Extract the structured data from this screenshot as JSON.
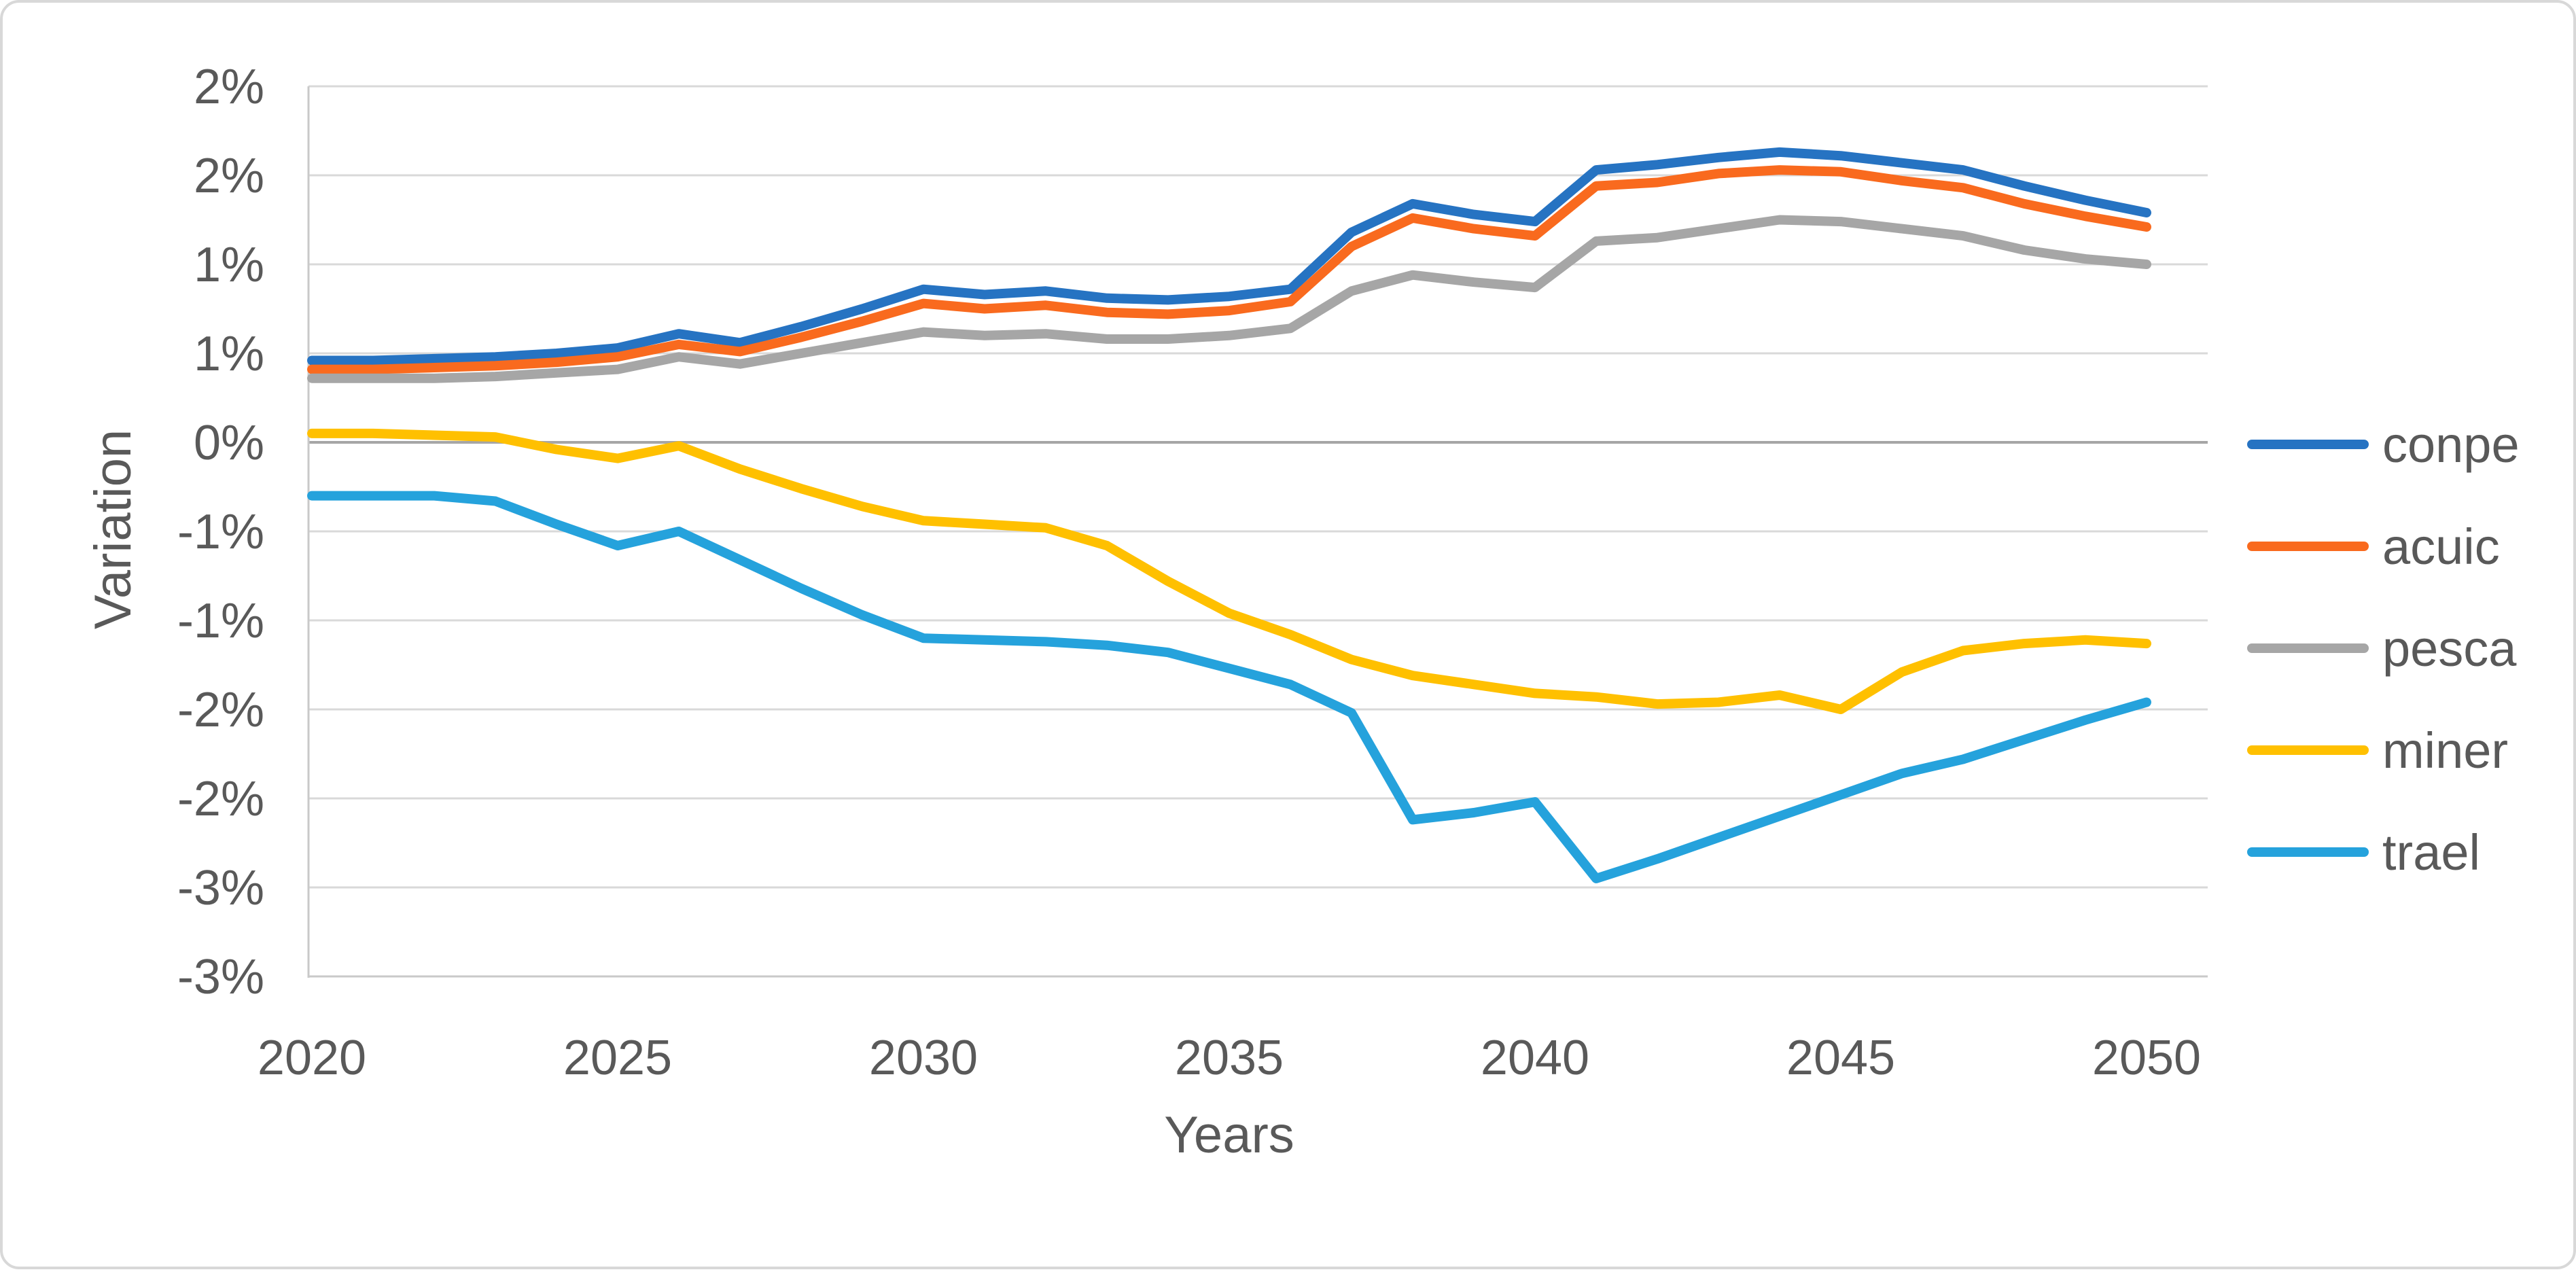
{
  "chart_data": {
    "type": "line",
    "title": "",
    "xlabel": "Years",
    "ylabel": "Variation",
    "grid": true,
    "legend_position": "right",
    "ylim": [
      -3.0,
      2.0
    ],
    "y_tick_step": 0.5,
    "y_ticks": [
      {
        "value": 2.0,
        "label": "2%"
      },
      {
        "value": 1.5,
        "label": "2%"
      },
      {
        "value": 1.0,
        "label": "1%"
      },
      {
        "value": 0.5,
        "label": "1%"
      },
      {
        "value": 0.0,
        "label": "0%"
      },
      {
        "value": -0.5,
        "label": "-1%"
      },
      {
        "value": -1.0,
        "label": "-1%"
      },
      {
        "value": -1.5,
        "label": "-2%"
      },
      {
        "value": -2.0,
        "label": "-2%"
      },
      {
        "value": -2.5,
        "label": "-3%"
      },
      {
        "value": -3.0,
        "label": "-3%"
      }
    ],
    "x": [
      2020,
      2021,
      2022,
      2023,
      2024,
      2025,
      2026,
      2027,
      2028,
      2029,
      2030,
      2031,
      2032,
      2033,
      2034,
      2035,
      2036,
      2037,
      2038,
      2039,
      2040,
      2041,
      2042,
      2043,
      2044,
      2045,
      2046,
      2047,
      2048,
      2049,
      2050
    ],
    "x_tick_labels": [
      "2020",
      "2025",
      "2030",
      "2035",
      "2040",
      "2045",
      "2050"
    ],
    "series": [
      {
        "name": "conpe",
        "color": "#2673c2",
        "values": [
          0.46,
          0.46,
          0.47,
          0.48,
          0.5,
          0.53,
          0.61,
          0.56,
          0.65,
          0.75,
          0.86,
          0.83,
          0.85,
          0.81,
          0.8,
          0.82,
          0.86,
          1.18,
          1.34,
          1.28,
          1.24,
          1.53,
          1.56,
          1.6,
          1.63,
          1.61,
          1.57,
          1.53,
          1.44,
          1.36,
          1.29
        ]
      },
      {
        "name": "acuic",
        "color": "#f96a1e",
        "values": [
          0.41,
          0.41,
          0.42,
          0.43,
          0.45,
          0.48,
          0.55,
          0.51,
          0.59,
          0.68,
          0.78,
          0.75,
          0.77,
          0.73,
          0.72,
          0.74,
          0.79,
          1.1,
          1.26,
          1.2,
          1.16,
          1.44,
          1.46,
          1.51,
          1.53,
          1.52,
          1.47,
          1.43,
          1.34,
          1.27,
          1.21
        ]
      },
      {
        "name": "pesca",
        "color": "#a6a6a6",
        "values": [
          0.36,
          0.36,
          0.36,
          0.37,
          0.39,
          0.41,
          0.48,
          0.44,
          0.5,
          0.56,
          0.62,
          0.6,
          0.61,
          0.58,
          0.58,
          0.6,
          0.64,
          0.85,
          0.94,
          0.9,
          0.87,
          1.13,
          1.15,
          1.2,
          1.25,
          1.24,
          1.2,
          1.16,
          1.08,
          1.03,
          1.0
        ]
      },
      {
        "name": "miner",
        "color": "#ffc000",
        "values": [
          0.05,
          0.05,
          0.04,
          0.03,
          -0.04,
          -0.09,
          -0.02,
          -0.15,
          -0.26,
          -0.36,
          -0.44,
          -0.46,
          -0.48,
          -0.58,
          -0.78,
          -0.96,
          -1.08,
          -1.22,
          -1.31,
          -1.36,
          -1.41,
          -1.43,
          -1.47,
          -1.46,
          -1.42,
          -1.5,
          -1.29,
          -1.17,
          -1.13,
          -1.11,
          -1.13
        ]
      },
      {
        "name": "trael",
        "color": "#25a2dc",
        "values": [
          -0.3,
          -0.3,
          -0.3,
          -0.33,
          -0.46,
          -0.58,
          -0.5,
          -0.66,
          -0.82,
          -0.97,
          -1.1,
          -1.11,
          -1.12,
          -1.14,
          -1.18,
          -1.27,
          -1.36,
          -1.52,
          -2.12,
          -2.08,
          -2.02,
          -2.45,
          -2.34,
          -2.22,
          -2.1,
          -1.98,
          -1.86,
          -1.78,
          -1.67,
          -1.56,
          -1.46
        ]
      }
    ]
  },
  "style_colors": {
    "gridline": "#d9d9d9",
    "zero_line": "#a6a6a6",
    "axis_line": "#c9c9c9",
    "text": "#595959",
    "canvas_border": "#d8d8d8",
    "background": "#ffffff"
  }
}
